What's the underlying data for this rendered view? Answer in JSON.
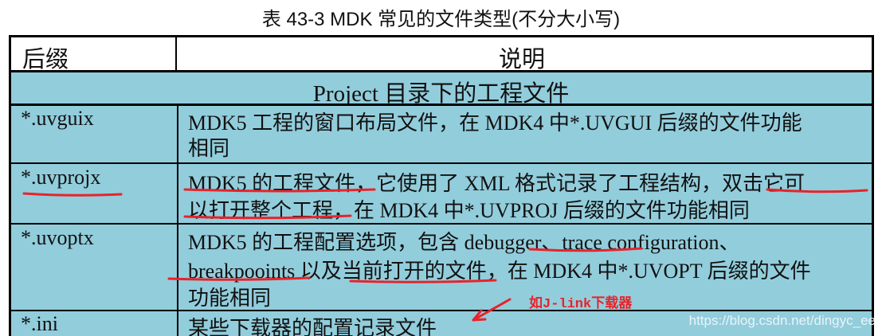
{
  "title": "表 43-3 MDK 常见的文件类型(不分大小写)",
  "header": {
    "col1": "后缀",
    "col2": "说明"
  },
  "section": "Project 目录下的工程文件",
  "rows": [
    {
      "ext": "*.uvguix",
      "lines": [
        "MDK5 工程的窗口布局文件，在 MDK4 中*.UVGUI 后缀的文件功能",
        "相同"
      ]
    },
    {
      "ext": "*.uvprojx",
      "lines": [
        "MDK5 的工程文件，它使用了 XML 格式记录了工程结构，双击它可",
        "以打开整个工程，在 MDK4 中*.UVPROJ 后缀的文件功能相同"
      ]
    },
    {
      "ext": "*.uvoptx",
      "lines": [
        "MDK5 的工程配置选项，包含 debugger、trace configuration、",
        "breakpooints 以及当前打开的文件，在 MDK4 中*.UVOPT 后缀的文件",
        "功能相同"
      ]
    },
    {
      "ext": "*.ini",
      "lines": [
        "某些下载器的配置记录文件"
      ]
    }
  ],
  "annotation": "如J-link下载器",
  "watermark": "https://blog.csdn.net/dingyc_ee",
  "colors": {
    "table_bg": "#92cddc",
    "annotation": "#e8232a"
  }
}
